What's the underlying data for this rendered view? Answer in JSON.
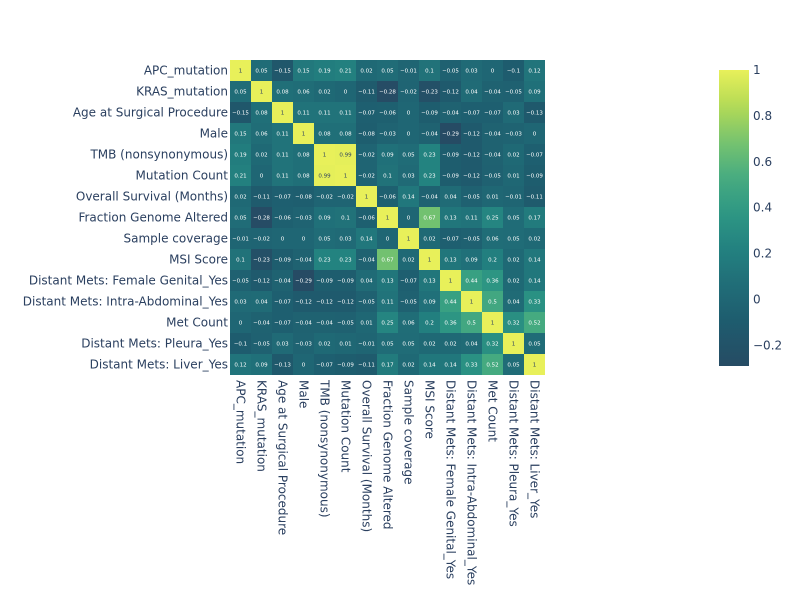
{
  "chart_data": {
    "type": "heatmap",
    "title": "",
    "labels": [
      "APC_mutation",
      "KRAS_mutation",
      "Age at Surgical Procedure",
      "Male",
      "TMB (nonsynonymous)",
      "Mutation Count",
      "Overall Survival (Months)",
      "Fraction Genome Altered",
      "Sample coverage",
      "MSI Score",
      "Distant Mets: Female Genital_Yes",
      "Distant Mets: Intra-Abdominal_Yes",
      "Met Count",
      "Distant Mets: Pleura_Yes",
      "Distant Mets: Liver_Yes"
    ],
    "values": [
      [
        1,
        0.05,
        -0.15,
        0.15,
        0.19,
        0.21,
        0.02,
        0.05,
        -0.01,
        0.1,
        -0.05,
        0.03,
        0,
        -0.1,
        0.12
      ],
      [
        0.05,
        1,
        0.08,
        0.06,
        0.02,
        0,
        -0.11,
        -0.28,
        -0.02,
        -0.23,
        -0.12,
        0.04,
        -0.04,
        -0.05,
        0.09
      ],
      [
        -0.15,
        0.08,
        1,
        0.11,
        0.11,
        0.11,
        -0.07,
        -0.06,
        0,
        -0.09,
        -0.04,
        -0.07,
        -0.07,
        0.03,
        -0.13
      ],
      [
        0.15,
        0.06,
        0.11,
        1,
        0.08,
        0.08,
        -0.08,
        -0.03,
        0,
        -0.04,
        -0.29,
        -0.12,
        -0.04,
        -0.03,
        0
      ],
      [
        0.19,
        0.02,
        0.11,
        0.08,
        1,
        0.99,
        -0.02,
        0.09,
        0.05,
        0.23,
        -0.09,
        -0.12,
        -0.04,
        0.02,
        -0.07
      ],
      [
        0.21,
        0,
        0.11,
        0.08,
        0.99,
        1,
        -0.02,
        0.1,
        0.03,
        0.23,
        -0.09,
        -0.12,
        -0.05,
        0.01,
        -0.09
      ],
      [
        0.02,
        -0.11,
        -0.07,
        -0.08,
        -0.02,
        -0.02,
        1,
        -0.06,
        0.14,
        -0.04,
        0.04,
        -0.05,
        0.01,
        -0.01,
        -0.11
      ],
      [
        0.05,
        -0.28,
        -0.06,
        -0.03,
        0.09,
        0.1,
        -0.06,
        1,
        0,
        0.67,
        0.13,
        0.11,
        0.25,
        0.05,
        0.17
      ],
      [
        -0.01,
        -0.02,
        0,
        0,
        0.05,
        0.03,
        0.14,
        0,
        1,
        0.02,
        -0.07,
        -0.05,
        0.06,
        0.05,
        0.02
      ],
      [
        0.1,
        -0.23,
        -0.09,
        -0.04,
        0.23,
        0.23,
        -0.04,
        0.67,
        0.02,
        1,
        0.13,
        0.09,
        0.2,
        0.02,
        0.14
      ],
      [
        -0.05,
        -0.12,
        -0.04,
        -0.29,
        -0.09,
        -0.09,
        0.04,
        0.13,
        -0.07,
        0.13,
        1,
        0.44,
        0.36,
        0.02,
        0.14
      ],
      [
        0.03,
        0.04,
        -0.07,
        -0.12,
        -0.12,
        -0.12,
        -0.05,
        0.11,
        -0.05,
        0.09,
        0.44,
        1,
        0.5,
        0.04,
        0.33
      ],
      [
        0,
        -0.04,
        -0.07,
        -0.04,
        -0.04,
        -0.05,
        0.01,
        0.25,
        0.06,
        0.2,
        0.36,
        0.5,
        1,
        0.32,
        0.52
      ],
      [
        -0.1,
        -0.05,
        0.03,
        -0.03,
        0.02,
        0.01,
        -0.01,
        0.05,
        0.05,
        0.02,
        0.02,
        0.04,
        0.32,
        1,
        0.05
      ],
      [
        0.12,
        0.09,
        -0.13,
        0,
        -0.07,
        -0.09,
        -0.11,
        0.17,
        0.02,
        0.14,
        0.14,
        0.33,
        0.52,
        0.05,
        1
      ]
    ],
    "zlim": [
      -0.29,
      1
    ],
    "colorscale": "viridis",
    "colorbar_ticks": [
      "1",
      "0.8",
      "0.6",
      "0.4",
      "0.2",
      "0",
      "−0.2"
    ],
    "grid": false,
    "legend": "colorbar-right"
  }
}
